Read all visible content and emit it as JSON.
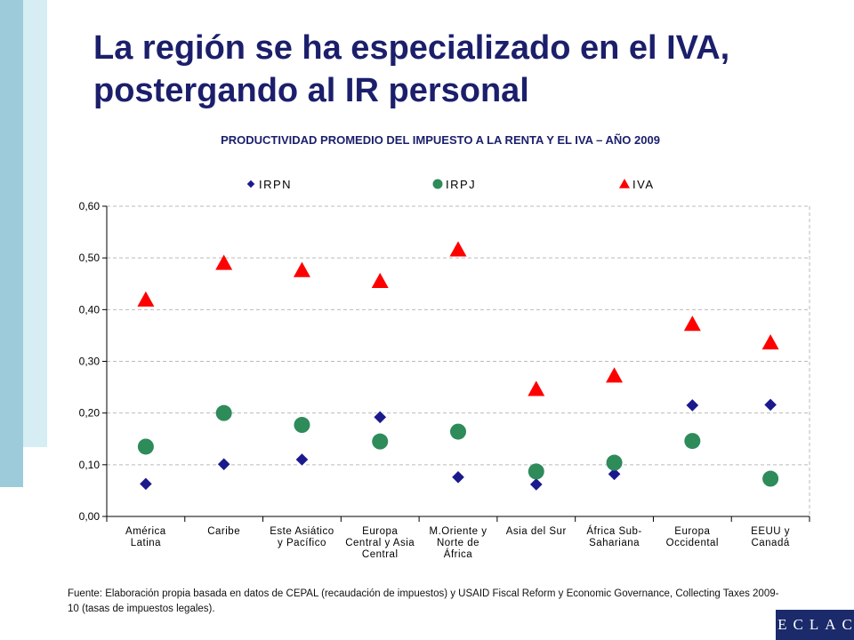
{
  "slide": {
    "title": "La región se ha especializado en el IVA, postergando al IR personal",
    "source": "Fuente: Elaboración propia basada en datos de CEPAL (recaudación de impuestos) y USAID Fiscal Reform y Economic Governance, Collecting Taxes 2009-10 (tasas de impuestos legales).",
    "logo_text": "ECLAC"
  },
  "colors": {
    "title": "#1b1f6b",
    "irpn": "#1a1a8c",
    "irpj": "#2e8b5a",
    "iva": "#ff0000",
    "grid": "#bbbbbb",
    "axis": "#000000"
  },
  "chart_data": {
    "type": "scatter",
    "title": "PRODUCTIVIDAD PROMEDIO DEL IMPUESTO A LA  RENTA Y EL IVA –  AÑO 2009",
    "xlabel": "",
    "ylabel": "",
    "ylim": [
      0,
      0.6
    ],
    "yticks": [
      0,
      0.1,
      0.2,
      0.3,
      0.4,
      0.5,
      0.6
    ],
    "ytick_labels": [
      "0,00",
      "0,10",
      "0,20",
      "0,30",
      "0,40",
      "0,50",
      "0,60"
    ],
    "grid": true,
    "legend_position": "top",
    "categories": [
      [
        "América",
        "Latina"
      ],
      [
        "Caribe"
      ],
      [
        "Este Asiático",
        "y Pacífico"
      ],
      [
        "Europa",
        "Central y Asia",
        "Central"
      ],
      [
        "M.Oriente y",
        "Norte de",
        "África"
      ],
      [
        "Asia del Sur"
      ],
      [
        "África Sub-",
        "Sahariana"
      ],
      [
        "Europa",
        "Occidental"
      ],
      [
        "EEUU y",
        "Canadá"
      ]
    ],
    "series": [
      {
        "name": "IRPN",
        "marker": "diamond",
        "values": [
          0.063,
          0.101,
          0.11,
          0.192,
          0.076,
          0.062,
          0.082,
          0.215,
          0.216
        ]
      },
      {
        "name": "IRPJ",
        "marker": "circle",
        "values": [
          0.135,
          0.2,
          0.177,
          0.145,
          0.164,
          0.087,
          0.104,
          0.146,
          0.073
        ]
      },
      {
        "name": "IVA",
        "marker": "triangle",
        "values": [
          0.419,
          0.49,
          0.476,
          0.455,
          0.516,
          0.246,
          0.272,
          0.372,
          0.336
        ]
      }
    ]
  }
}
